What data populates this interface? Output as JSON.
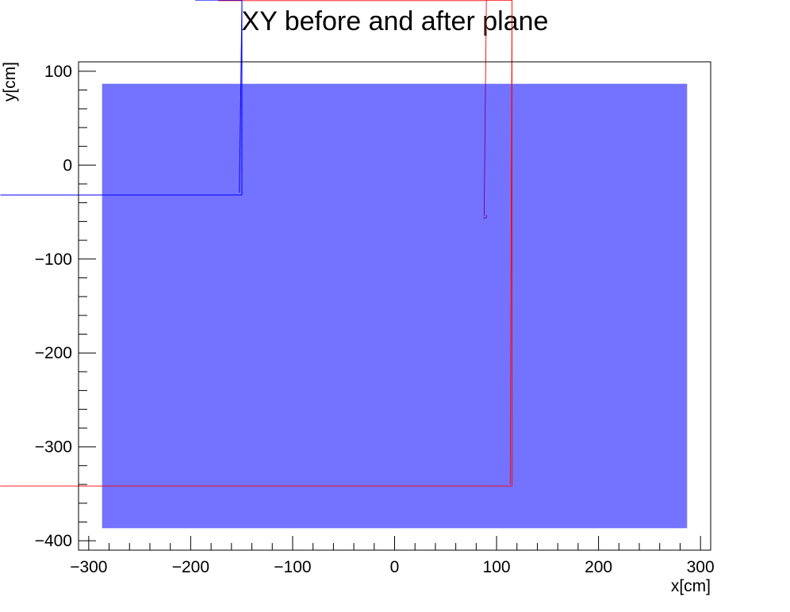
{
  "chart_data": {
    "type": "scatter",
    "title": "XY before and after plane",
    "xlabel": "x[cm]",
    "ylabel": "y[cm]",
    "xlim": [
      -310,
      310
    ],
    "ylim": [
      -410,
      110
    ],
    "x_ticks": [
      -300,
      -200,
      -100,
      0,
      100,
      200,
      300
    ],
    "x_tick_labels": [
      "−300",
      "−200",
      "−100",
      "0",
      "100",
      "200",
      "300"
    ],
    "y_ticks": [
      -400,
      -300,
      -200,
      -100,
      0,
      100
    ],
    "y_tick_labels": [
      "−400",
      "−300",
      "−200",
      "−100",
      "0",
      "100"
    ],
    "grid": false,
    "marker": "star",
    "series": [
      {
        "color": "#ff0000",
        "x_range": [
          -290,
          290
        ],
        "y_range": [
          -390,
          90
        ]
      },
      {
        "color": "#0000ff",
        "x_range": [
          -290,
          290
        ],
        "y_range": [
          -390,
          90
        ]
      }
    ]
  }
}
